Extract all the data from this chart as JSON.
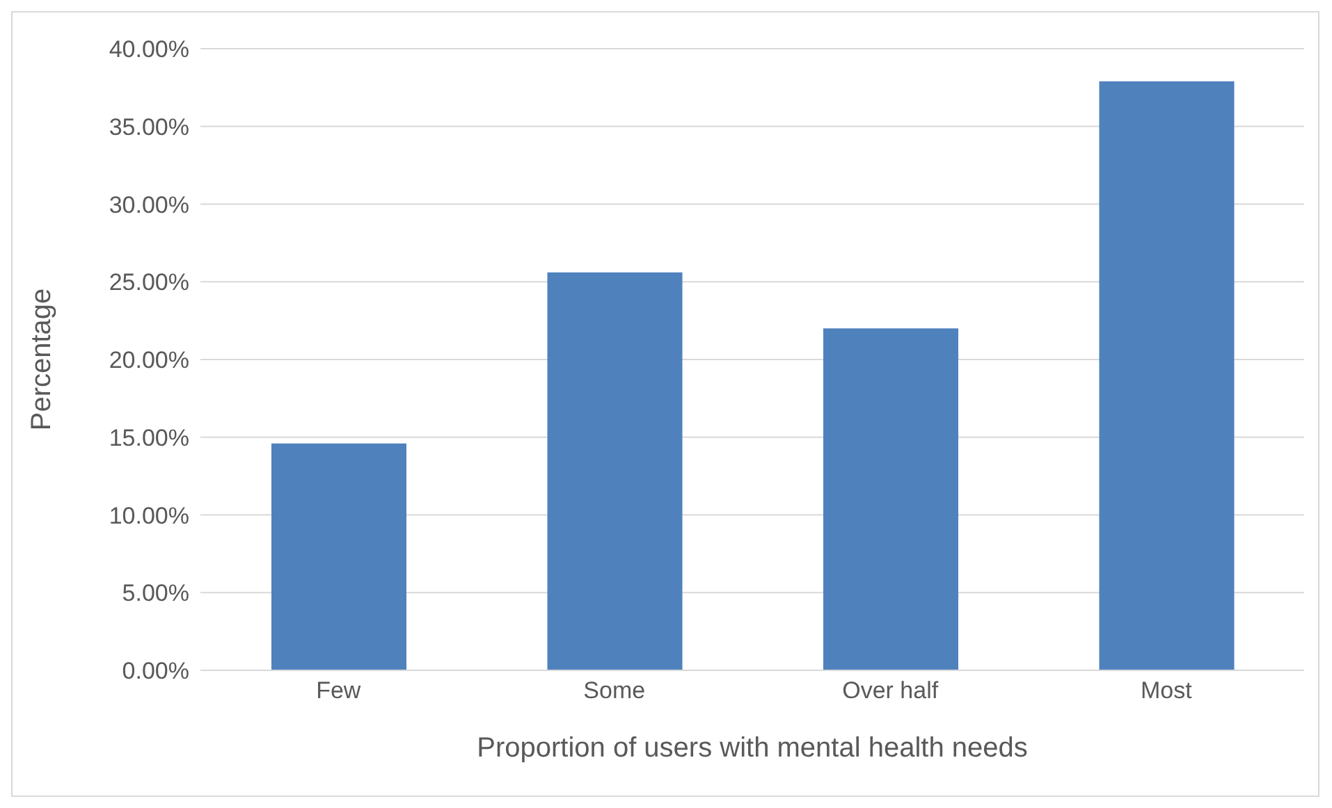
{
  "chart_data": {
    "type": "bar",
    "xlabel": "Proportion of users with mental health needs",
    "ylabel": "Percentage",
    "categories": [
      "Few",
      "Some",
      "Over half",
      "Most"
    ],
    "values": [
      14.6,
      25.6,
      22.0,
      37.9
    ],
    "color": "#4f81bd",
    "ylim": [
      0,
      40
    ],
    "yticks": [
      {
        "value": 0,
        "label": "0.00%"
      },
      {
        "value": 5,
        "label": "5.00%"
      },
      {
        "value": 10,
        "label": "10.00%"
      },
      {
        "value": 15,
        "label": "15.00%"
      },
      {
        "value": 20,
        "label": "20.00%"
      },
      {
        "value": 25,
        "label": "25.00%"
      },
      {
        "value": 30,
        "label": "30.00%"
      },
      {
        "value": 35,
        "label": "35.00%"
      },
      {
        "value": 40,
        "label": "40.00%"
      }
    ],
    "grid": "y"
  }
}
